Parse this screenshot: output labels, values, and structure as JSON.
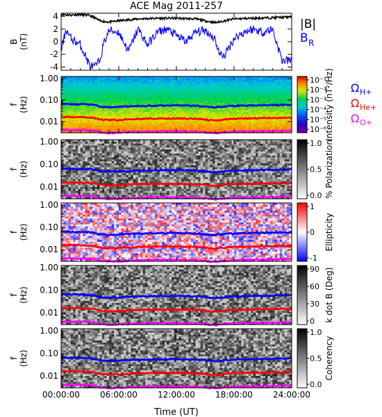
{
  "chart_data": {
    "type": "multi-panel spectrogram",
    "title": "ACE Mag 2011-257",
    "xlabel": "Time (UT)",
    "x_ticks": [
      "00:00:00",
      "06:00:00",
      "12:00:00",
      "18:00:00",
      "24:00:00"
    ],
    "x_range_hours": [
      0,
      24
    ],
    "series_colors": {
      "H": "#0000ff",
      "He": "#ff0000",
      "O": "#ff00ff",
      "Btot": "#000000",
      "BR": "#0000ff"
    },
    "panels": [
      {
        "id": "b-field",
        "type": "line",
        "ylabel_top": "B",
        "ylabel_bottom": "(nT)",
        "ylim": [
          -4.5,
          4.5
        ],
        "y_ticks": [
          "4",
          "2",
          "0",
          "-2",
          "-4"
        ],
        "y_tick_values": [
          4,
          2,
          0,
          -2,
          -4
        ],
        "legend_btot": "|B|",
        "legend_br": "B",
        "legend_br_sub": "R",
        "series": [
          {
            "name": "|B|",
            "hours": [
              0,
              1,
              2,
              3,
              3.5,
              4,
              5,
              6,
              8,
              10,
              12,
              14,
              15,
              16,
              17,
              18,
              20,
              22,
              24
            ],
            "values": [
              4.3,
              4.2,
              4.3,
              4.1,
              3.8,
              3.3,
              3.1,
              3.3,
              3.6,
              3.7,
              3.7,
              3.6,
              3.3,
              3.0,
              3.3,
              3.6,
              3.7,
              3.8,
              3.9
            ]
          },
          {
            "name": "B_R",
            "hours": [
              0,
              0.5,
              1,
              2,
              3,
              3.5,
              4,
              4.5,
              5,
              6,
              7,
              8,
              9,
              10,
              11,
              12,
              13,
              14,
              15,
              16,
              16.5,
              17,
              18,
              19,
              20,
              21,
              22,
              23,
              24
            ],
            "values": [
              -1.5,
              2.0,
              0.5,
              -0.5,
              -3.8,
              -4.0,
              -3.0,
              0.0,
              1.8,
              1.5,
              -1.5,
              2.0,
              -0.5,
              1.5,
              2.0,
              1.0,
              0.0,
              1.5,
              1.8,
              0.5,
              -2.0,
              -2.2,
              0.5,
              1.5,
              2.0,
              1.5,
              2.0,
              -3.0,
              -3.0
            ]
          }
        ]
      },
      {
        "id": "intensity",
        "type": "heatmap",
        "ylabel_top": "f",
        "ylabel_bottom": "(Hz)",
        "cbar_label": "Intensity (nT²/Hz)",
        "cbar_ticks": [
          "10⁻¹",
          "10⁻²",
          "10⁻³",
          "10⁻⁴",
          "10⁻⁵",
          "10⁻⁶"
        ],
        "cbar_kind": "rainbow",
        "side_labels": [
          {
            "text": "Ω",
            "sub": "H+",
            "color": "#0000ff"
          },
          {
            "text": "Ω",
            "sub": "He+",
            "color": "#ff0000"
          },
          {
            "text": "Ω",
            "sub": "O+",
            "color": "#ff00ff"
          }
        ]
      },
      {
        "id": "polarization",
        "type": "heatmap",
        "ylabel_top": "f",
        "ylabel_bottom": "(Hz)",
        "cbar_label": "% Polarization",
        "cbar_ticks": [
          "1.0",
          "0.5",
          "0.0"
        ],
        "cbar_kind": "gray"
      },
      {
        "id": "ellipticity",
        "type": "heatmap",
        "ylabel_top": "f",
        "ylabel_bottom": "(Hz)",
        "cbar_label": "Ellipticity",
        "cbar_ticks": [
          "1",
          "0",
          "-1"
        ],
        "cbar_kind": "bwr"
      },
      {
        "id": "kdotb",
        "type": "heatmap",
        "ylabel_top": "f",
        "ylabel_bottom": "(Hz)",
        "cbar_label": "k dot B (Deg)",
        "cbar_ticks": [
          "90",
          "60",
          "30",
          "0"
        ],
        "cbar_kind": "gray"
      },
      {
        "id": "coherency",
        "type": "heatmap",
        "ylabel_top": "f",
        "ylabel_bottom": "(Hz)",
        "cbar_label": "Coherency",
        "cbar_ticks": [
          "1.0",
          "0.5",
          "0.0"
        ],
        "cbar_kind": "gray"
      }
    ],
    "freq_axis": {
      "ticks": [
        "1.00",
        "0.10",
        "0.01"
      ],
      "tick_values": [
        1.0,
        0.1,
        0.01
      ],
      "ylim": [
        0.003,
        1.25
      ],
      "scale": "log"
    },
    "gyrofrequency_hz": {
      "hours": [
        0,
        2,
        3,
        3.5,
        4,
        4.5,
        5,
        6,
        8,
        10,
        12,
        14,
        15,
        15.5,
        16,
        16.5,
        17,
        18,
        20,
        22,
        24
      ],
      "H+": [
        0.065,
        0.063,
        0.062,
        0.058,
        0.05,
        0.048,
        0.046,
        0.048,
        0.053,
        0.055,
        0.056,
        0.054,
        0.05,
        0.046,
        0.045,
        0.047,
        0.05,
        0.054,
        0.056,
        0.058,
        0.06
      ],
      "He+": [
        0.016,
        0.016,
        0.015,
        0.0145,
        0.0125,
        0.012,
        0.0115,
        0.012,
        0.0133,
        0.0138,
        0.014,
        0.0135,
        0.0125,
        0.0115,
        0.011,
        0.0118,
        0.0125,
        0.0135,
        0.014,
        0.0145,
        0.015
      ],
      "O+": [
        0.0041,
        0.004,
        0.0039,
        0.0037,
        0.0032,
        0.003,
        0.0029,
        0.003,
        0.0033,
        0.0035,
        0.0035,
        0.0034,
        0.0031,
        0.0029,
        0.0028,
        0.003,
        0.0031,
        0.0034,
        0.0035,
        0.0036,
        0.0038
      ]
    }
  }
}
